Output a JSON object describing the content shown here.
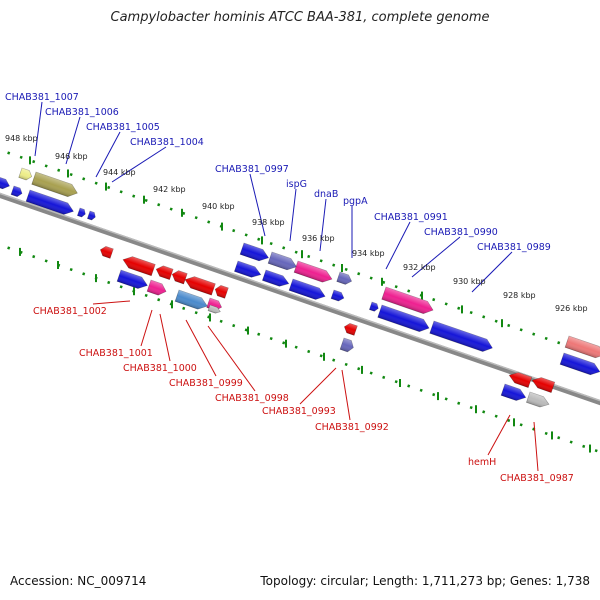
{
  "title": "Campylobacter hominis ATCC BAA-381, complete genome",
  "footer": {
    "accession": "Accession: NC_009714",
    "stats": "Topology: circular; Length: 1,711,273 bp; Genes: 1,738"
  },
  "colors": {
    "forward": "#1515d8",
    "reverse": "#e50000",
    "pink": "#ee2090",
    "olive": "#a8a050",
    "yellow": "#eeee88",
    "steel": "#4a8acc",
    "slate": "#6666bb",
    "grey": "#bbbbbb",
    "salmon": "#ee7777",
    "label_forward": "#1a1ab5",
    "label_reverse": "#cc1111",
    "tick": "#118811",
    "backbone": "#888888"
  },
  "kbp_labels": [
    "948 kbp",
    "946 kbp",
    "944 kbp",
    "942 kbp",
    "940 kbp",
    "938 kbp",
    "936 kbp",
    "934 kbp",
    "932 kbp",
    "930 kbp",
    "928 kbp",
    "926 kbp"
  ],
  "forward_gene_labels": [
    "CHAB381_1007",
    "CHAB381_1006",
    "CHAB381_1005",
    "CHAB381_1004",
    "CHAB381_0997",
    "ispG",
    "dnaB",
    "pgpA",
    "CHAB381_0991",
    "CHAB381_0990",
    "CHAB381_0989"
  ],
  "reverse_gene_labels": [
    "CHAB381_1002",
    "CHAB381_1001",
    "CHAB381_1000",
    "CHAB381_0999",
    "CHAB381_0998",
    "CHAB381_0993",
    "CHAB381_0992",
    "hemH",
    "CHAB381_0987"
  ]
}
